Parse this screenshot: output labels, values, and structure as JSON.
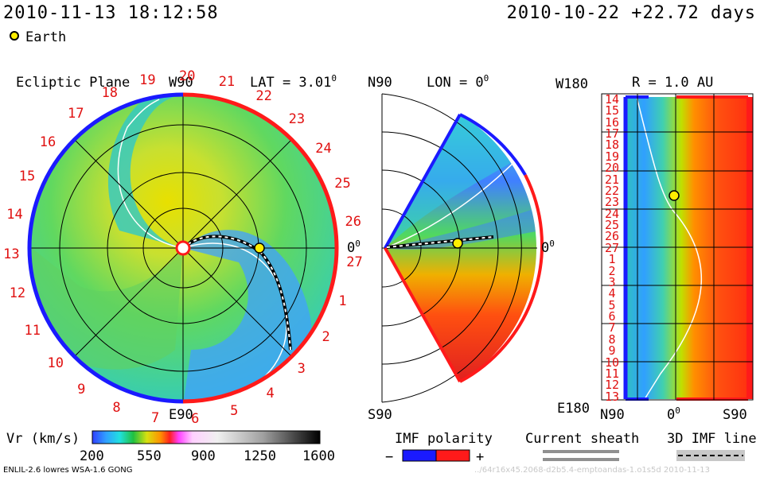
{
  "header": {
    "datetime": "2010-11-13 18:12:58",
    "ref": "2010-10-22 +22.72 days"
  },
  "legend": {
    "earth_label": "Earth"
  },
  "ecliptic": {
    "title": "Ecliptic Plane",
    "top_label": "W90",
    "bottom_label": "E90",
    "lat_label": "LAT = 3.01",
    "lat_deg": "0",
    "right_label": "0",
    "right_deg": "0",
    "ticks": [
      "19",
      "20",
      "21",
      "22",
      "23",
      "24",
      "25",
      "26",
      "27",
      "1",
      "2",
      "3",
      "4",
      "5",
      "6",
      "7",
      "8",
      "9",
      "10",
      "11",
      "12",
      "13",
      "14",
      "15",
      "16",
      "17",
      "18"
    ]
  },
  "meridional": {
    "top_label": "N90",
    "bottom_label": "S90",
    "lon_label": "LON = 0",
    "lon_deg": "0",
    "right_label": "0",
    "right_deg": "0"
  },
  "radial": {
    "top_left": "W180",
    "bottom_left": "E180",
    "r_label": "R = 1.0 AU",
    "bottom_mid": "N90",
    "bottom_zero": "0",
    "bottom_zero_deg": "0",
    "bottom_right": "S90",
    "rows": [
      "14",
      "15",
      "16",
      "17",
      "18",
      "19",
      "20",
      "21",
      "22",
      "23",
      "24",
      "25",
      "26",
      "27",
      "1",
      "2",
      "3",
      "4",
      "5",
      "6",
      "7",
      "8",
      "9",
      "10",
      "11",
      "12",
      "13"
    ]
  },
  "colorbar": {
    "label": "Vr (km/s)",
    "ticks": [
      "200",
      "550",
      "900",
      "1250",
      "1600"
    ]
  },
  "imf": {
    "label": "IMF polarity",
    "minus": "−",
    "plus": "+"
  },
  "sheath": {
    "label": "Current sheath"
  },
  "imf3d": {
    "label": "3D IMF line"
  },
  "footer": {
    "model": "ENLIL-2.6 lowres WSA-1.6 GONG",
    "id": "../64r16x45.2068-d2b5.4-emptoandas-1.o1s5d   2010-11-13"
  },
  "colors": {
    "boundary_red": "#ff1a1a",
    "boundary_blue": "#1a1aff",
    "earth": "#ffee00",
    "sheath": "#ffffff"
  },
  "chart_data": [
    {
      "type": "heatmap",
      "name": "ecliptic-plane",
      "quantity": "Vr",
      "unit": "km/s",
      "range": [
        200,
        1600
      ],
      "latitude_deg": 3.01
    },
    {
      "type": "heatmap",
      "name": "meridional-plane",
      "quantity": "Vr",
      "unit": "km/s",
      "range": [
        200,
        1600
      ],
      "longitude_deg": 0
    },
    {
      "type": "heatmap",
      "name": "radial-map",
      "quantity": "Vr",
      "unit": "km/s",
      "range": [
        200,
        1600
      ],
      "radius_au": 1.0
    }
  ]
}
